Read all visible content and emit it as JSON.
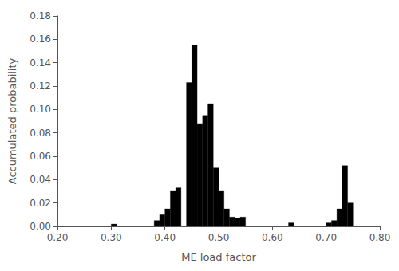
{
  "chart_data": {
    "type": "histogram",
    "xlabel": "ME load factor",
    "ylabel": "Accumulated probability",
    "x": [
      0.3,
      0.38,
      0.39,
      0.4,
      0.41,
      0.42,
      0.43,
      0.44,
      0.45,
      0.46,
      0.47,
      0.48,
      0.49,
      0.5,
      0.51,
      0.52,
      0.53,
      0.54,
      0.63,
      0.7,
      0.71,
      0.72,
      0.73,
      0.74,
      0.75
    ],
    "values": [
      0.002,
      0.005,
      0.01,
      0.015,
      0.03,
      0.033,
      0.0,
      0.123,
      0.155,
      0.088,
      0.095,
      0.105,
      0.05,
      0.03,
      0.015,
      0.008,
      0.007,
      0.008,
      0.003,
      0.003,
      0.005,
      0.015,
      0.052,
      0.02,
      0.0
    ],
    "bin_width": 0.01,
    "color": "#000000",
    "xlim": [
      0.2,
      0.8
    ],
    "ylim": [
      0.0,
      0.18
    ],
    "xticks": [
      {
        "value": 0.2,
        "label": "0.20"
      },
      {
        "value": 0.3,
        "label": "0.30"
      },
      {
        "value": 0.4,
        "label": "0.40"
      },
      {
        "value": 0.5,
        "label": "0.50"
      },
      {
        "value": 0.6,
        "label": "0.60"
      },
      {
        "value": 0.7,
        "label": "0.70"
      },
      {
        "value": 0.8,
        "label": "0.80"
      }
    ],
    "yticks": [
      {
        "value": 0,
        "label": "0.00"
      },
      {
        "value": 0.02,
        "label": "0.02"
      },
      {
        "value": 0.04,
        "label": "0.04"
      },
      {
        "value": 0.06,
        "label": "0.06"
      },
      {
        "value": 0.08,
        "label": "0.08"
      },
      {
        "value": 0.1,
        "label": "0.10"
      },
      {
        "value": 0.12,
        "label": "0.12"
      },
      {
        "value": 0.14,
        "label": "0.14"
      },
      {
        "value": 0.16,
        "label": "0.16"
      },
      {
        "value": 0.18,
        "label": "0.18"
      }
    ],
    "grid": false
  }
}
